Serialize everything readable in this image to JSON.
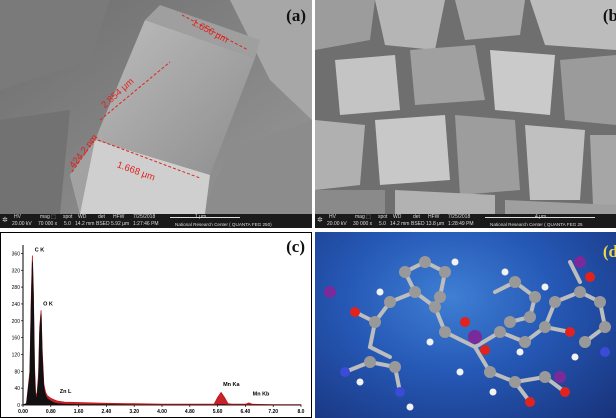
{
  "panel_a": {
    "label": "(a)",
    "measurements": [
      "1.656 μm",
      "2.854 μm",
      "424.2 nm",
      "1.668 μm"
    ],
    "info_bar": {
      "hv": "20.00 kV",
      "mag": "70 000 x",
      "spot": "5.0",
      "wd": "14.2 mm",
      "det": "BSED",
      "hfw": "5.92 μm",
      "date": "7/25/2018",
      "time": "1:27:46 PM",
      "scale": "1 μm",
      "lab": "National Research Center ( QUANTA FEG 250)"
    }
  },
  "panel_b": {
    "label": "(b",
    "info_bar": {
      "hv": "20.00 kV",
      "mag": "30 000 x",
      "spot": "5.0",
      "wd": "14.2 mm",
      "det": "BSED",
      "hfw": "13.8 μm",
      "date": "7/25/2018",
      "time": "1:28:49 PM",
      "scale": "4 μm",
      "lab": "National Research Center ( QUANTA FEG 25"
    }
  },
  "panel_c": {
    "label": "(c)",
    "peak_labels": [
      "C K",
      "O K",
      "Zn L",
      "Mn Ka",
      "Mn Kb"
    ],
    "chart_data": {
      "type": "line",
      "y_ticks": [
        "0",
        "40",
        "80",
        "120",
        "160",
        "200",
        "240",
        "280",
        "320",
        "360"
      ],
      "x_ticks": [
        "0.00",
        "0.80",
        "1.60",
        "2.40",
        "3.20",
        "4.00",
        "4.80",
        "5.60",
        "6.40",
        "7.20",
        "8.0"
      ],
      "xlim": [
        0,
        8.0
      ],
      "ylim": [
        0,
        380
      ],
      "x": [
        0.0,
        0.1,
        0.2,
        0.24,
        0.27,
        0.3,
        0.33,
        0.36,
        0.4,
        0.45,
        0.48,
        0.52,
        0.55,
        0.6,
        0.65,
        0.7,
        0.8,
        0.9,
        1.0,
        1.2,
        1.6,
        2.0,
        2.4,
        3.2,
        4.0,
        4.8,
        5.5,
        5.6,
        5.7,
        5.8,
        5.9,
        6.0,
        6.4,
        6.5,
        6.6,
        7.2,
        8.0
      ],
      "series": [
        {
          "values": [
            0,
            3,
            70,
            240,
            340,
            250,
            80,
            22,
            15,
            60,
            170,
            215,
            120,
            40,
            22,
            15,
            9,
            5,
            3,
            2,
            1,
            1,
            1,
            0,
            0,
            0,
            0,
            1,
            1,
            1,
            0,
            0,
            0,
            0,
            0,
            0,
            0
          ]
        },
        {
          "values": [
            0,
            4,
            80,
            260,
            355,
            270,
            95,
            30,
            22,
            75,
            185,
            225,
            135,
            50,
            30,
            22,
            16,
            12,
            9,
            7,
            6,
            5,
            4,
            3,
            2,
            2,
            2,
            18,
            30,
            18,
            3,
            2,
            2,
            5,
            2,
            1,
            1
          ]
        }
      ]
    }
  },
  "panel_d": {
    "label": "(d"
  }
}
